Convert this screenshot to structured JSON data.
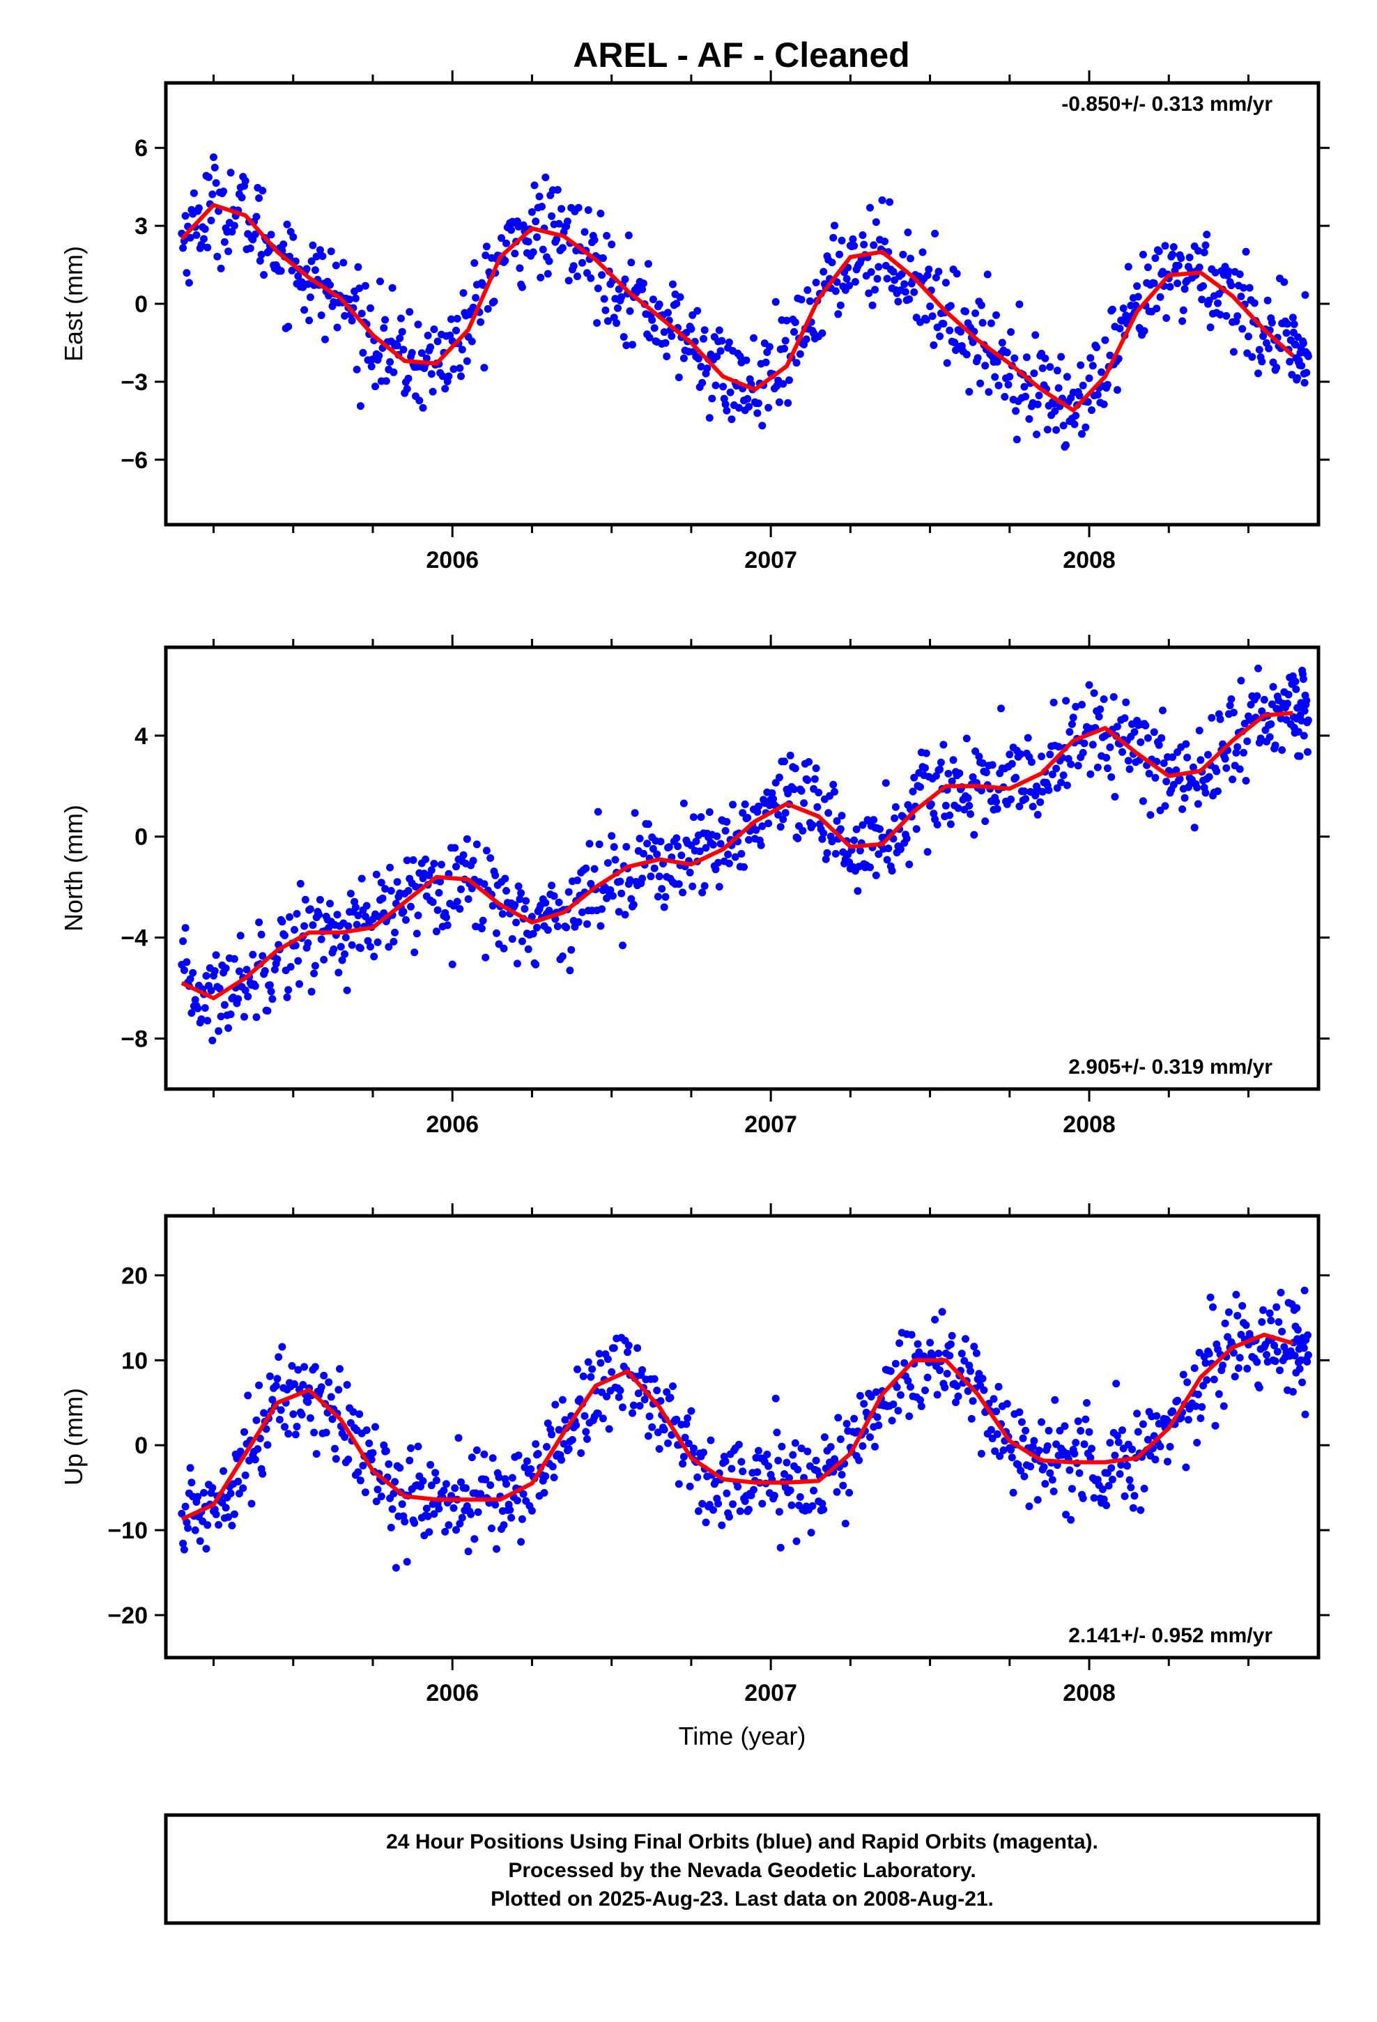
{
  "title": "AREL  - AF - Cleaned",
  "footer": {
    "lines": [
      "24 Hour Positions Using Final Orbits (blue) and Rapid Orbits (magenta).",
      "Processed by the Nevada Geodetic Laboratory.",
      "Plotted on 2025-Aug-23. Last data on 2008-Aug-21."
    ]
  },
  "colors": {
    "points": "#0000ff",
    "fit": "#ff0000",
    "frame": "#000000"
  },
  "chart_data": [
    {
      "type": "scatter",
      "ylabel": "East (mm)",
      "xlabel": "",
      "rate_label": "-0.850+/- 0.313 mm/yr",
      "rate_position": "top-right",
      "xlim": [
        2005.1,
        2008.72
      ],
      "ylim": [
        -8.5,
        8.5
      ],
      "xticks": [
        2006,
        2007,
        2008
      ],
      "xtick_labels": [
        "2006",
        "2007",
        "2008"
      ],
      "yticks": [
        -6,
        -3,
        0,
        3,
        6
      ],
      "ytick_labels": [
        "−6",
        "−3",
        "0",
        "3",
        "6"
      ],
      "series": [
        {
          "kind": "points",
          "x": [
            2005.15,
            2005.25,
            2005.35,
            2005.45,
            2005.55,
            2005.65,
            2005.75,
            2005.85,
            2005.95,
            2006.05,
            2006.15,
            2006.25,
            2006.35,
            2006.45,
            2006.55,
            2006.65,
            2006.75,
            2006.85,
            2006.95,
            2007.05,
            2007.15,
            2007.25,
            2007.35,
            2007.45,
            2007.55,
            2007.65,
            2007.75,
            2007.85,
            2007.95,
            2008.05,
            2008.15,
            2008.25,
            2008.35,
            2008.45,
            2008.55,
            2008.64
          ],
          "y": [
            2.5,
            3.8,
            3.4,
            2.0,
            1.0,
            0.2,
            -1.2,
            -2.2,
            -2.3,
            -1.0,
            1.8,
            2.9,
            2.6,
            1.7,
            0.5,
            -0.5,
            -1.5,
            -2.8,
            -3.3,
            -2.4,
            0.2,
            1.8,
            2.0,
            1.0,
            -0.3,
            -1.4,
            -2.3,
            -3.3,
            -4.1,
            -2.8,
            -0.3,
            1.1,
            1.2,
            0.3,
            -1.0,
            -2.0
          ]
        },
        {
          "kind": "fit",
          "x": [
            2005.15,
            2005.25,
            2005.35,
            2005.45,
            2005.55,
            2005.65,
            2005.75,
            2005.85,
            2005.95,
            2006.05,
            2006.15,
            2006.25,
            2006.35,
            2006.45,
            2006.55,
            2006.65,
            2006.75,
            2006.85,
            2006.95,
            2007.05,
            2007.15,
            2007.25,
            2007.35,
            2007.45,
            2007.55,
            2007.65,
            2007.75,
            2007.85,
            2007.95,
            2008.05,
            2008.15,
            2008.25,
            2008.35,
            2008.45,
            2008.55,
            2008.64
          ],
          "y": [
            2.5,
            3.8,
            3.4,
            2.0,
            1.0,
            0.2,
            -1.2,
            -2.2,
            -2.3,
            -1.0,
            1.8,
            2.9,
            2.6,
            1.7,
            0.5,
            -0.5,
            -1.5,
            -2.8,
            -3.3,
            -2.4,
            0.2,
            1.8,
            2.0,
            1.0,
            -0.3,
            -1.4,
            -2.3,
            -3.3,
            -4.1,
            -2.8,
            -0.3,
            1.1,
            1.2,
            0.3,
            -1.0,
            -2.0
          ]
        }
      ]
    },
    {
      "type": "scatter",
      "ylabel": "North (mm)",
      "xlabel": "",
      "rate_label": "2.905+/- 0.319 mm/yr",
      "rate_position": "bottom-right",
      "xlim": [
        2005.1,
        2008.72
      ],
      "ylim": [
        -10,
        7.5
      ],
      "xticks": [
        2006,
        2007,
        2008
      ],
      "xtick_labels": [
        "2006",
        "2007",
        "2008"
      ],
      "yticks": [
        -8,
        -4,
        0,
        4
      ],
      "ytick_labels": [
        "−8",
        "−4",
        "0",
        "4"
      ],
      "series": [
        {
          "kind": "points",
          "x": [
            2005.15,
            2005.25,
            2005.35,
            2005.45,
            2005.55,
            2005.65,
            2005.75,
            2005.85,
            2005.95,
            2006.05,
            2006.15,
            2006.25,
            2006.35,
            2006.45,
            2006.55,
            2006.65,
            2006.75,
            2006.85,
            2006.95,
            2007.05,
            2007.15,
            2007.25,
            2007.35,
            2007.45,
            2007.55,
            2007.65,
            2007.75,
            2007.85,
            2007.95,
            2008.05,
            2008.15,
            2008.25,
            2008.35,
            2008.45,
            2008.55,
            2008.64
          ],
          "y": [
            -5.8,
            -6.4,
            -5.6,
            -4.5,
            -3.8,
            -3.8,
            -3.6,
            -2.6,
            -1.6,
            -1.7,
            -2.7,
            -3.4,
            -3.0,
            -2.0,
            -1.2,
            -0.9,
            -1.1,
            -0.5,
            0.6,
            1.3,
            0.8,
            -0.4,
            -0.3,
            1.0,
            2.0,
            2.0,
            1.9,
            2.5,
            3.8,
            4.3,
            3.3,
            2.4,
            2.6,
            3.8,
            4.8,
            4.9
          ]
        },
        {
          "kind": "fit",
          "x": [
            2005.15,
            2005.25,
            2005.35,
            2005.45,
            2005.55,
            2005.65,
            2005.75,
            2005.85,
            2005.95,
            2006.05,
            2006.15,
            2006.25,
            2006.35,
            2006.45,
            2006.55,
            2006.65,
            2006.75,
            2006.85,
            2006.95,
            2007.05,
            2007.15,
            2007.25,
            2007.35,
            2007.45,
            2007.55,
            2007.65,
            2007.75,
            2007.85,
            2007.95,
            2008.05,
            2008.15,
            2008.25,
            2008.35,
            2008.45,
            2008.55,
            2008.64
          ],
          "y": [
            -5.8,
            -6.4,
            -5.6,
            -4.5,
            -3.8,
            -3.8,
            -3.6,
            -2.6,
            -1.6,
            -1.7,
            -2.7,
            -3.4,
            -3.0,
            -2.0,
            -1.2,
            -0.9,
            -1.1,
            -0.5,
            0.6,
            1.3,
            0.8,
            -0.4,
            -0.3,
            1.0,
            2.0,
            2.0,
            1.9,
            2.5,
            3.8,
            4.3,
            3.3,
            2.4,
            2.6,
            3.8,
            4.8,
            4.9
          ]
        }
      ]
    },
    {
      "type": "scatter",
      "ylabel": "Up (mm)",
      "xlabel": "Time (year)",
      "rate_label": "2.141+/- 0.952 mm/yr",
      "rate_position": "bottom-right",
      "xlim": [
        2005.1,
        2008.72
      ],
      "ylim": [
        -25,
        27
      ],
      "xticks": [
        2006,
        2007,
        2008
      ],
      "xtick_labels": [
        "2006",
        "2007",
        "2008"
      ],
      "yticks": [
        -20,
        -10,
        0,
        10,
        20
      ],
      "ytick_labels": [
        "−20",
        "−10",
        "0",
        "10",
        "20"
      ],
      "series": [
        {
          "kind": "points",
          "x": [
            2005.15,
            2005.25,
            2005.35,
            2005.45,
            2005.55,
            2005.65,
            2005.75,
            2005.85,
            2005.95,
            2006.05,
            2006.15,
            2006.25,
            2006.35,
            2006.45,
            2006.55,
            2006.65,
            2006.75,
            2006.85,
            2006.95,
            2007.05,
            2007.15,
            2007.25,
            2007.35,
            2007.45,
            2007.55,
            2007.65,
            2007.75,
            2007.85,
            2007.95,
            2008.05,
            2008.15,
            2008.25,
            2008.35,
            2008.45,
            2008.55,
            2008.64
          ],
          "y": [
            -8.7,
            -7.0,
            -1.0,
            5.0,
            6.5,
            3.0,
            -3.0,
            -6.0,
            -6.4,
            -6.4,
            -6.4,
            -4.5,
            1.5,
            7.0,
            8.7,
            4.5,
            -1.5,
            -4.0,
            -4.4,
            -4.4,
            -4.2,
            -1.0,
            6.0,
            10.0,
            10.0,
            6.0,
            0.5,
            -1.8,
            -2.0,
            -2.0,
            -1.5,
            2.0,
            8.0,
            11.5,
            13.0,
            12.0
          ]
        },
        {
          "kind": "fit",
          "x": [
            2005.15,
            2005.25,
            2005.35,
            2005.45,
            2005.55,
            2005.65,
            2005.75,
            2005.85,
            2005.95,
            2006.05,
            2006.15,
            2006.25,
            2006.35,
            2006.45,
            2006.55,
            2006.65,
            2006.75,
            2006.85,
            2006.95,
            2007.05,
            2007.15,
            2007.25,
            2007.35,
            2007.45,
            2007.55,
            2007.65,
            2007.75,
            2007.85,
            2007.95,
            2008.05,
            2008.15,
            2008.25,
            2008.35,
            2008.45,
            2008.55,
            2008.64
          ],
          "y": [
            -8.7,
            -7.0,
            -1.0,
            5.0,
            6.5,
            3.0,
            -3.0,
            -6.0,
            -6.4,
            -6.4,
            -6.4,
            -4.5,
            1.5,
            7.0,
            8.7,
            4.5,
            -1.5,
            -4.0,
            -4.4,
            -4.4,
            -4.2,
            -1.0,
            6.0,
            10.0,
            10.0,
            6.0,
            0.5,
            -1.8,
            -2.0,
            -2.0,
            -1.5,
            2.0,
            8.0,
            11.5,
            13.0,
            12.0
          ]
        }
      ]
    }
  ]
}
